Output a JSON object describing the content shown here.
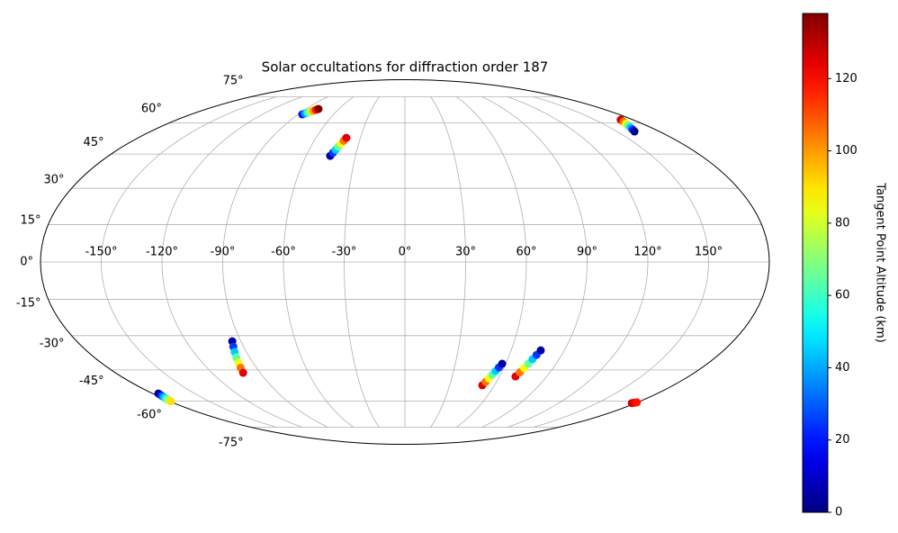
{
  "chart_data": {
    "type": "scatter",
    "projection": "mollweide",
    "title": "Solar occultations for diffraction order 187",
    "colorbar_label": "Tangent Point Altitude (km)",
    "colormap": "jet",
    "grid": true,
    "xticks": [
      {
        "value": -150,
        "label": "-150°"
      },
      {
        "value": -120,
        "label": "-120°"
      },
      {
        "value": -90,
        "label": "-90°"
      },
      {
        "value": -60,
        "label": "-60°"
      },
      {
        "value": -30,
        "label": "-30°"
      },
      {
        "value": 0,
        "label": "0°"
      },
      {
        "value": 30,
        "label": "30°"
      },
      {
        "value": 60,
        "label": "60°"
      },
      {
        "value": 90,
        "label": "90°"
      },
      {
        "value": 120,
        "label": "120°"
      },
      {
        "value": 150,
        "label": "150°"
      }
    ],
    "yticks": [
      {
        "value": -75,
        "label": "-75°"
      },
      {
        "value": -60,
        "label": "-60°"
      },
      {
        "value": -45,
        "label": "-45°"
      },
      {
        "value": -30,
        "label": "-30°"
      },
      {
        "value": -15,
        "label": "-15°"
      },
      {
        "value": 0,
        "label": "0°"
      },
      {
        "value": 15,
        "label": "15°"
      },
      {
        "value": 30,
        "label": "30°"
      },
      {
        "value": 45,
        "label": "45°"
      },
      {
        "value": 60,
        "label": "60°"
      },
      {
        "value": 75,
        "label": "75°"
      }
    ],
    "clim": [
      0,
      138
    ],
    "cticks": [
      0,
      20,
      40,
      60,
      80,
      100,
      120
    ],
    "series": [
      {
        "x": [
          -86.4,
          -85.1,
          -83.8,
          -82.4,
          -81.1,
          -79.8,
          -78.5
        ],
        "y": [
          64.6,
          65.1,
          65.6,
          66.1,
          66.6,
          67.1,
          67.6
        ],
        "values": [
          20,
          40,
          59,
          79,
          99,
          118,
          138
        ]
      },
      {
        "x": [
          -45.4,
          -44.4,
          -43.4,
          -42.5,
          -41.5,
          -40.5,
          -39.5
        ],
        "y": [
          44.2,
          45.6,
          47.0,
          48.4,
          49.8,
          51.2,
          52.6
        ],
        "values": [
          5,
          25,
          45,
          65,
          85,
          105,
          125
        ]
      },
      {
        "x": [
          170.4,
          169.1,
          167.7,
          166.4,
          165.1,
          163.7,
          162.4
        ],
        "y": [
          61.7,
          60.7,
          59.7,
          58.7,
          57.7,
          56.7,
          55.7
        ],
        "values": [
          128,
          107,
          86,
          65,
          44,
          23,
          2
        ]
      },
      {
        "x": [
          -94.7,
          -95.7,
          -96.7,
          -97.7,
          -98.6,
          -99.6,
          -100.6
        ],
        "y": [
          -32.4,
          -34.7,
          -37.0,
          -39.4,
          -41.7,
          -44.0,
          -46.3
        ],
        "values": [
          5,
          25,
          45,
          65,
          85,
          105,
          125
        ]
      },
      {
        "x": [
          -175.8,
          -176.4,
          -177.0,
          -177.6,
          -178.2,
          -178.8,
          -179.4
        ],
        "y": [
          -56.2,
          -56.9,
          -57.5,
          -58.2,
          -58.9,
          -59.5,
          -60.2
        ],
        "values": [
          0,
          15,
          30,
          45,
          60,
          75,
          90
        ]
      },
      {
        "x": [
          51.9,
          52.9,
          53.9,
          54.9,
          55.9,
          56.9,
          57.9
        ],
        "y": [
          -52.2,
          -50.5,
          -48.9,
          -47.2,
          -45.5,
          -43.9,
          -42.2
        ],
        "values": [
          125,
          105,
          85,
          65,
          45,
          25,
          5
        ]
      },
      {
        "x": [
          70.2,
          71.3,
          72.4,
          73.5,
          74.5,
          75.6,
          76.7
        ],
        "y": [
          -48.0,
          -46.1,
          -44.1,
          -42.2,
          -40.2,
          -38.3,
          -36.3
        ],
        "values": [
          125,
          105,
          85,
          65,
          45,
          25,
          5
        ]
      },
      {
        "x": [
          177,
          178.2,
          179.5
        ],
        "y": [
          -61.1,
          -60.9,
          -60.7
        ],
        "values": [
          128,
          123,
          118
        ]
      }
    ]
  }
}
